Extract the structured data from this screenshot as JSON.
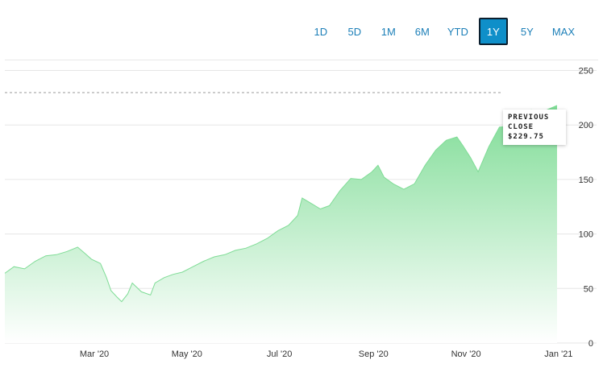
{
  "range_buttons": [
    {
      "label": "1D",
      "active": false
    },
    {
      "label": "5D",
      "active": false
    },
    {
      "label": "1M",
      "active": false
    },
    {
      "label": "6M",
      "active": false
    },
    {
      "label": "YTD",
      "active": false
    },
    {
      "label": "1Y",
      "active": true
    },
    {
      "label": "5Y",
      "active": false
    },
    {
      "label": "MAX",
      "active": false
    }
  ],
  "previous_close": {
    "line1": "PREVIOUS",
    "line2": "CLOSE",
    "value_text": "$229.75",
    "value": 229.75
  },
  "colors": {
    "area_top": "#7fdc96",
    "area_bottom": "#ffffff",
    "accent": "#0f8fc9"
  },
  "chart_data": {
    "type": "area",
    "title": "",
    "xlabel": "",
    "ylabel": "",
    "ylim": [
      0,
      260
    ],
    "y_ticks": [
      0,
      50,
      100,
      150,
      200,
      250
    ],
    "x_ticks": [
      "Mar '20",
      "May '20",
      "Jul '20",
      "Sep '20",
      "Nov '20",
      "Jan '21"
    ],
    "x_tick_dates": [
      "2020-03-01",
      "2020-05-01",
      "2020-07-01",
      "2020-09-01",
      "2020-11-01",
      "2021-01-01"
    ],
    "grid": true,
    "x_range": [
      "2020-01-02",
      "2020-12-31"
    ],
    "series": [
      {
        "x": [
          "2020-01-02",
          "2020-01-08",
          "2020-01-15",
          "2020-01-22",
          "2020-01-29",
          "2020-02-05",
          "2020-02-12",
          "2020-02-19",
          "2020-02-24",
          "2020-02-28",
          "2020-03-05",
          "2020-03-09",
          "2020-03-12",
          "2020-03-16",
          "2020-03-19",
          "2020-03-23",
          "2020-03-26",
          "2020-04-01",
          "2020-04-07",
          "2020-04-10",
          "2020-04-16",
          "2020-04-22",
          "2020-04-28",
          "2020-05-05",
          "2020-05-12",
          "2020-05-19",
          "2020-05-26",
          "2020-06-02",
          "2020-06-09",
          "2020-06-16",
          "2020-06-23",
          "2020-06-30",
          "2020-07-07",
          "2020-07-13",
          "2020-07-16",
          "2020-07-22",
          "2020-07-28",
          "2020-08-03",
          "2020-08-10",
          "2020-08-17",
          "2020-08-24",
          "2020-08-31",
          "2020-09-04",
          "2020-09-08",
          "2020-09-14",
          "2020-09-21",
          "2020-09-28",
          "2020-10-05",
          "2020-10-12",
          "2020-10-19",
          "2020-10-26",
          "2020-10-30",
          "2020-11-04",
          "2020-11-09",
          "2020-11-16",
          "2020-11-23",
          "2020-11-30",
          "2020-12-07",
          "2020-12-14",
          "2020-12-21",
          "2020-12-31"
        ],
        "values": [
          64,
          70,
          68,
          75,
          80,
          81,
          84,
          88,
          82,
          77,
          73,
          60,
          48,
          42,
          38,
          45,
          55,
          47,
          44,
          55,
          60,
          63,
          65,
          70,
          75,
          79,
          81,
          85,
          87,
          91,
          96,
          103,
          108,
          117,
          133,
          128,
          123,
          126,
          140,
          151,
          150,
          157,
          163,
          152,
          146,
          141,
          146,
          163,
          177,
          186,
          189,
          181,
          170,
          157,
          180,
          198,
          199,
          205,
          214,
          212,
          218
        ]
      }
    ]
  }
}
